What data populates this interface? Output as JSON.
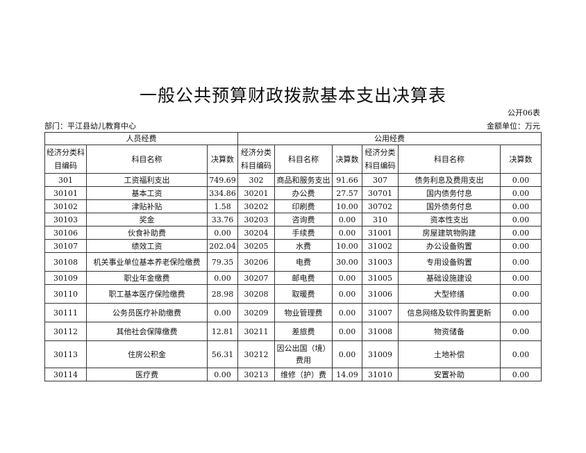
{
  "title": "一般公共预算财政拨款基本支出决算表",
  "form_no": "公开06表",
  "department": "部门：平江县幼儿教育中心",
  "unit": "金额单位：万元",
  "groups": {
    "personnel": "人员经费",
    "public": "公用经费"
  },
  "headers": {
    "code": "经济分类科目编码",
    "name": "科目名称",
    "amount": "决算数"
  },
  "rows": [
    [
      "301",
      "工资福利支出",
      "749.69",
      "302",
      "商品和服务支出",
      "91.66",
      "307",
      "债务利息及费用支出",
      "0.00"
    ],
    [
      "30101",
      "基本工资",
      "334.86",
      "30201",
      "办公费",
      "27.57",
      "30701",
      "国内债务付息",
      "0.00"
    ],
    [
      "30102",
      "津贴补贴",
      "1.58",
      "30202",
      "印刷费",
      "10.00",
      "30702",
      "国外债务付息",
      "0.00"
    ],
    [
      "30103",
      "奖金",
      "33.76",
      "30203",
      "咨询费",
      "0.00",
      "310",
      "资本性支出",
      "0.00"
    ],
    [
      "30106",
      "伙食补助费",
      "0.00",
      "30204",
      "手续费",
      "0.00",
      "31001",
      "房屋建筑物购建",
      "0.00"
    ],
    [
      "30107",
      "绩效工资",
      "202.04",
      "30205",
      "水费",
      "10.00",
      "31002",
      "办公设备购置",
      "0.00"
    ],
    [
      "30108",
      "机关事业单位基本养老保险缴费",
      "79.35",
      "30206",
      "电费",
      "30.00",
      "31003",
      "专用设备购置",
      "0.00"
    ],
    [
      "30109",
      "职业年金缴费",
      "0.00",
      "30207",
      "邮电费",
      "0.00",
      "31005",
      "基础设施建设",
      "0.00"
    ],
    [
      "30110",
      "职工基本医疗保险缴费",
      "28.98",
      "30208",
      "取暖费",
      "0.00",
      "31006",
      "大型修缮",
      "0.00"
    ],
    [
      "30111",
      "公务员医疗补助缴费",
      "0.00",
      "30209",
      "物业管理费",
      "0.00",
      "31007",
      "信息网络及软件购置更新",
      "0.00"
    ],
    [
      "30112",
      "其他社会保障缴费",
      "12.81",
      "30211",
      "差旅费",
      "0.00",
      "31008",
      "物资储备",
      "0.00"
    ],
    [
      "30113",
      "住房公积金",
      "56.31",
      "30212",
      "因公出国（境）费用",
      "0.00",
      "31009",
      "土地补偿",
      "0.00"
    ],
    [
      "30114",
      "医疗费",
      "0.00",
      "30213",
      "维修（护）费",
      "14.09",
      "31010",
      "安置补助",
      "0.00"
    ]
  ]
}
